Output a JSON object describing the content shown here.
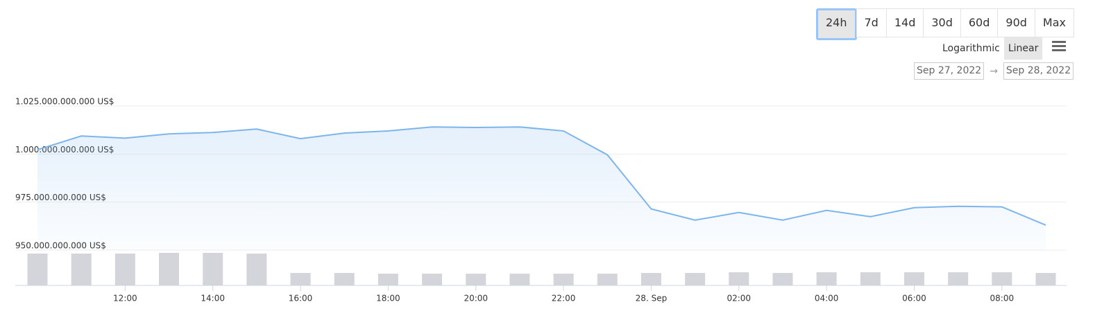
{
  "controls": {
    "ranges": [
      "24h",
      "7d",
      "14d",
      "30d",
      "60d",
      "90d",
      "Max"
    ],
    "active_range": "24h",
    "scales": [
      "Logarithmic",
      "Linear"
    ],
    "active_scale": "Linear",
    "date_from": "Sep 27, 2022",
    "date_arrow": "→",
    "date_to": "Sep 28, 2022"
  },
  "chart_data": {
    "type": "line",
    "categories": [
      null,
      null,
      "12:00",
      null,
      "14:00",
      null,
      "16:00",
      null,
      "18:00",
      null,
      "20:00",
      null,
      "22:00",
      null,
      "28. Sep",
      null,
      "02:00",
      null,
      "04:00",
      null,
      "06:00",
      null,
      "08:00",
      null
    ],
    "series": [
      {
        "color": "#7cb5ec",
        "values": [
          1002200000000,
          1009400000000,
          1008300000000,
          1010500000000,
          1011200000000,
          1013000000000,
          1008000000000,
          1010900000000,
          1012000000000,
          1014100000000,
          1013800000000,
          1014100000000,
          1012000000000,
          999600000000,
          971400000000,
          965600000000,
          969600000000,
          965600000000,
          970700000000,
          967400000000,
          972100000000,
          972800000000,
          972500000000,
          963000000000
        ]
      },
      {
        "type": "bar",
        "axis": "y2",
        "color": "#d3d5db",
        "values": [
          46,
          46,
          46,
          47,
          47,
          46,
          18,
          18,
          17,
          17,
          17,
          17,
          17,
          17,
          18,
          18,
          19,
          18,
          19,
          19,
          19,
          19,
          19,
          18
        ]
      }
    ],
    "ylim": [
      950000000000,
      1025000000000
    ],
    "yticks": [
      {
        "value": 950000000000,
        "label": "950.000.000.000 US$"
      },
      {
        "value": 975000000000,
        "label": "975.000.000.000 US$"
      },
      {
        "value": 1000000000000,
        "label": "1.000.000.000.000 US$"
      },
      {
        "value": 1025000000000,
        "label": "1.025.000.000.000 US$"
      }
    ],
    "y2lim": [
      0,
      50
    ],
    "grid": true
  }
}
